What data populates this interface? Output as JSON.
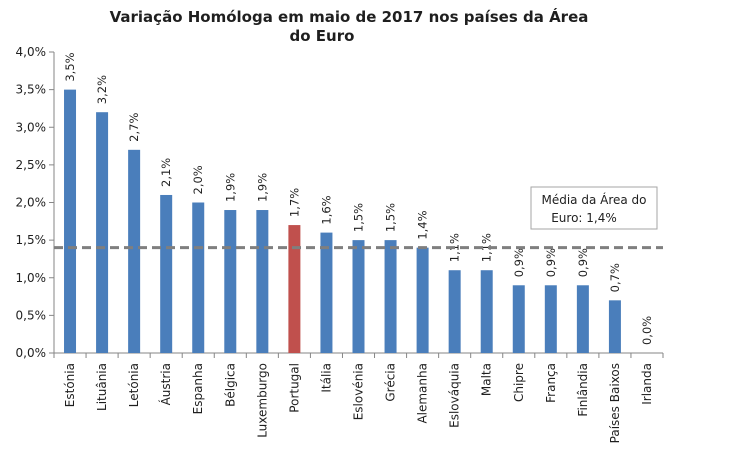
{
  "chart_data": {
    "type": "bar",
    "title_line1": "Variação Homóloga em maio de 2017 nos países da Área",
    "title_line2": "do Euro",
    "categories": [
      "Estónia",
      "Lituânia",
      "Letónia",
      "Áustria",
      "Espanha",
      "Bélgica",
      "Luxemburgo",
      "Portugal",
      "Itália",
      "Eslovénia",
      "Grécia",
      "Alemanha",
      "Eslováquia",
      "Malta",
      "Chipre",
      "França",
      "Finlândia",
      "Países Baixos",
      "Irlanda"
    ],
    "values": [
      3.5,
      3.2,
      2.7,
      2.1,
      2.0,
      1.9,
      1.9,
      1.7,
      1.6,
      1.5,
      1.5,
      1.4,
      1.1,
      1.1,
      0.9,
      0.9,
      0.9,
      0.7,
      0.0
    ],
    "labels": [
      "3,5%",
      "3,2%",
      "2,7%",
      "2,1%",
      "2,0%",
      "1,9%",
      "1,9%",
      "1,7%",
      "1,6%",
      "1,5%",
      "1,5%",
      "1,4%",
      "1,1%",
      "1,1%",
      "0,9%",
      "0,9%",
      "0,9%",
      "0,7%",
      "0,0%"
    ],
    "highlight": "Portugal",
    "ylim": [
      0,
      4.0
    ],
    "yticks": [
      0,
      0.5,
      1.0,
      1.5,
      2.0,
      2.5,
      3.0,
      3.5,
      4.0
    ],
    "ytick_labels": [
      "0,0%",
      "0,5%",
      "1,0%",
      "1,5%",
      "2,0%",
      "2,5%",
      "3,0%",
      "3,5%",
      "4,0%"
    ],
    "average": {
      "value": 1.4,
      "label_line1": "Média da Área do",
      "label_line2": "Euro: 1,4%"
    },
    "colors": {
      "bar": "#4a7ebb",
      "highlight": "#c0504d",
      "average_line": "#7f7f7f",
      "axis": "#868686"
    }
  }
}
